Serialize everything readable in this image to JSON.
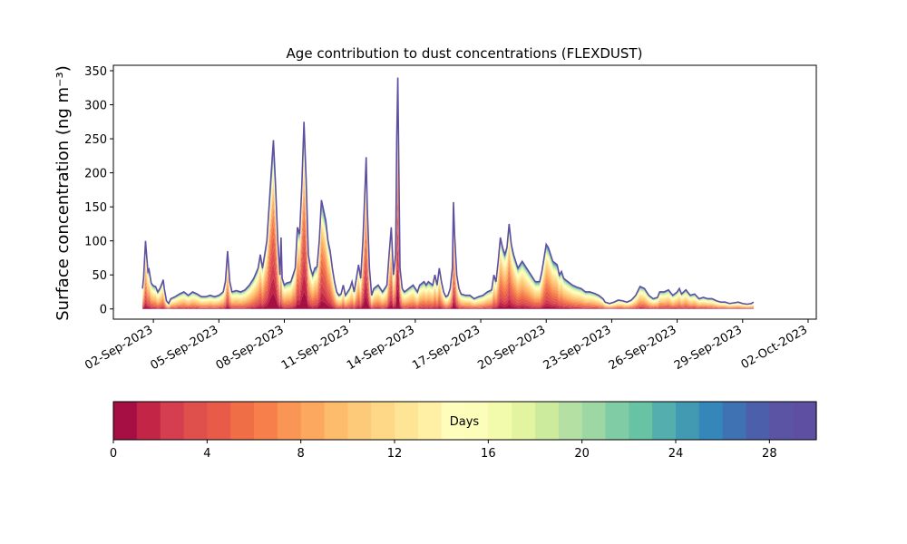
{
  "chart_data": {
    "type": "area",
    "stacked": true,
    "title": "Age contribution to dust concentrations (FLEXDUST)",
    "xlabel": "",
    "ylabel": "Surface concentration (ng m⁻³)",
    "ylim": [
      -15,
      358
    ],
    "xlim": [
      "2023-08-31 04:00",
      "2023-10-02 09:00"
    ],
    "yticks": [
      "0",
      "50",
      "100",
      "150",
      "200",
      "250",
      "300",
      "350"
    ],
    "xticks": [
      "02-Sep-2023",
      "05-Sep-2023",
      "08-Sep-2023",
      "11-Sep-2023",
      "14-Sep-2023",
      "17-Sep-2023",
      "20-Sep-2023",
      "23-Sep-2023",
      "26-Sep-2023",
      "29-Sep-2023",
      "02-Oct-2023"
    ],
    "x_start": "2023-09-01 12:00",
    "x_end": "2023-10-01 12:00",
    "total_concentration": [
      [
        0.0,
        30
      ],
      [
        0.05,
        45
      ],
      [
        0.1,
        75
      ],
      [
        0.14,
        100
      ],
      [
        0.2,
        75
      ],
      [
        0.25,
        55
      ],
      [
        0.3,
        58
      ],
      [
        0.4,
        38
      ],
      [
        0.5,
        34
      ],
      [
        0.6,
        33
      ],
      [
        0.7,
        25
      ],
      [
        0.8,
        30
      ],
      [
        0.9,
        38
      ],
      [
        0.95,
        43
      ],
      [
        1.0,
        30
      ],
      [
        1.1,
        12
      ],
      [
        1.2,
        8
      ],
      [
        1.3,
        15
      ],
      [
        1.5,
        18
      ],
      [
        1.7,
        22
      ],
      [
        1.9,
        25
      ],
      [
        2.1,
        20
      ],
      [
        2.3,
        25
      ],
      [
        2.5,
        22
      ],
      [
        2.7,
        18
      ],
      [
        2.9,
        18
      ],
      [
        3.1,
        20
      ],
      [
        3.3,
        18
      ],
      [
        3.5,
        20
      ],
      [
        3.7,
        25
      ],
      [
        3.8,
        40
      ],
      [
        3.9,
        85
      ],
      [
        4.0,
        40
      ],
      [
        4.1,
        25
      ],
      [
        4.3,
        27
      ],
      [
        4.5,
        25
      ],
      [
        4.7,
        28
      ],
      [
        4.9,
        35
      ],
      [
        5.1,
        45
      ],
      [
        5.3,
        60
      ],
      [
        5.4,
        80
      ],
      [
        5.5,
        60
      ],
      [
        5.7,
        100
      ],
      [
        5.8,
        150
      ],
      [
        5.9,
        200
      ],
      [
        6.0,
        248
      ],
      [
        6.1,
        180
      ],
      [
        6.2,
        100
      ],
      [
        6.3,
        50
      ],
      [
        6.35,
        105
      ],
      [
        6.4,
        45
      ],
      [
        6.5,
        35
      ],
      [
        6.6,
        38
      ],
      [
        6.8,
        40
      ],
      [
        7.0,
        60
      ],
      [
        7.1,
        120
      ],
      [
        7.2,
        110
      ],
      [
        7.3,
        180
      ],
      [
        7.4,
        275
      ],
      [
        7.5,
        190
      ],
      [
        7.6,
        80
      ],
      [
        7.7,
        60
      ],
      [
        7.8,
        50
      ],
      [
        7.9,
        60
      ],
      [
        8.0,
        62
      ],
      [
        8.1,
        100
      ],
      [
        8.2,
        160
      ],
      [
        8.3,
        145
      ],
      [
        8.4,
        130
      ],
      [
        8.5,
        100
      ],
      [
        8.6,
        85
      ],
      [
        8.7,
        60
      ],
      [
        8.8,
        40
      ],
      [
        8.9,
        25
      ],
      [
        9.0,
        20
      ],
      [
        9.1,
        22
      ],
      [
        9.2,
        35
      ],
      [
        9.3,
        20
      ],
      [
        9.4,
        25
      ],
      [
        9.5,
        30
      ],
      [
        9.6,
        40
      ],
      [
        9.7,
        25
      ],
      [
        9.8,
        45
      ],
      [
        9.9,
        65
      ],
      [
        10.0,
        45
      ],
      [
        10.1,
        100
      ],
      [
        10.2,
        180
      ],
      [
        10.25,
        223
      ],
      [
        10.3,
        150
      ],
      [
        10.4,
        60
      ],
      [
        10.5,
        20
      ],
      [
        10.6,
        30
      ],
      [
        10.8,
        35
      ],
      [
        11.0,
        25
      ],
      [
        11.2,
        35
      ],
      [
        11.3,
        80
      ],
      [
        11.4,
        120
      ],
      [
        11.5,
        50
      ],
      [
        11.6,
        80
      ],
      [
        11.65,
        250
      ],
      [
        11.7,
        340
      ],
      [
        11.75,
        200
      ],
      [
        11.8,
        60
      ],
      [
        11.9,
        30
      ],
      [
        12.0,
        25
      ],
      [
        12.2,
        30
      ],
      [
        12.4,
        35
      ],
      [
        12.6,
        25
      ],
      [
        12.7,
        35
      ],
      [
        12.9,
        40
      ],
      [
        13.0,
        35
      ],
      [
        13.1,
        40
      ],
      [
        13.3,
        35
      ],
      [
        13.4,
        50
      ],
      [
        13.5,
        35
      ],
      [
        13.6,
        60
      ],
      [
        13.7,
        40
      ],
      [
        13.8,
        25
      ],
      [
        13.9,
        18
      ],
      [
        14.0,
        20
      ],
      [
        14.1,
        30
      ],
      [
        14.2,
        60
      ],
      [
        14.25,
        157
      ],
      [
        14.3,
        110
      ],
      [
        14.4,
        50
      ],
      [
        14.5,
        30
      ],
      [
        14.6,
        22
      ],
      [
        14.8,
        20
      ],
      [
        15.0,
        20
      ],
      [
        15.2,
        15
      ],
      [
        15.4,
        18
      ],
      [
        15.6,
        20
      ],
      [
        15.8,
        25
      ],
      [
        16.0,
        28
      ],
      [
        16.1,
        50
      ],
      [
        16.2,
        40
      ],
      [
        16.3,
        70
      ],
      [
        16.4,
        105
      ],
      [
        16.5,
        90
      ],
      [
        16.6,
        80
      ],
      [
        16.7,
        90
      ],
      [
        16.8,
        125
      ],
      [
        16.9,
        95
      ],
      [
        17.0,
        80
      ],
      [
        17.2,
        60
      ],
      [
        17.4,
        70
      ],
      [
        17.5,
        65
      ],
      [
        17.6,
        60
      ],
      [
        17.8,
        50
      ],
      [
        18.0,
        40
      ],
      [
        18.2,
        40
      ],
      [
        18.3,
        55
      ],
      [
        18.5,
        95
      ],
      [
        18.6,
        90
      ],
      [
        18.8,
        70
      ],
      [
        19.0,
        65
      ],
      [
        19.1,
        50
      ],
      [
        19.2,
        55
      ],
      [
        19.3,
        45
      ],
      [
        19.5,
        40
      ],
      [
        19.7,
        35
      ],
      [
        19.9,
        32
      ],
      [
        20.1,
        30
      ],
      [
        20.3,
        25
      ],
      [
        20.5,
        25
      ],
      [
        20.7,
        23
      ],
      [
        20.9,
        20
      ],
      [
        21.1,
        15
      ],
      [
        21.2,
        10
      ],
      [
        21.4,
        8
      ],
      [
        21.6,
        10
      ],
      [
        21.8,
        13
      ],
      [
        22.0,
        12
      ],
      [
        22.2,
        10
      ],
      [
        22.4,
        13
      ],
      [
        22.6,
        20
      ],
      [
        22.8,
        33
      ],
      [
        23.0,
        30
      ],
      [
        23.2,
        20
      ],
      [
        23.4,
        15
      ],
      [
        23.6,
        17
      ],
      [
        23.7,
        25
      ],
      [
        23.9,
        25
      ],
      [
        24.1,
        28
      ],
      [
        24.3,
        20
      ],
      [
        24.5,
        25
      ],
      [
        24.6,
        30
      ],
      [
        24.7,
        22
      ],
      [
        24.9,
        28
      ],
      [
        25.1,
        20
      ],
      [
        25.3,
        22
      ],
      [
        25.5,
        15
      ],
      [
        25.7,
        17
      ],
      [
        25.9,
        15
      ],
      [
        26.1,
        15
      ],
      [
        26.3,
        12
      ],
      [
        26.5,
        10
      ],
      [
        26.7,
        10
      ],
      [
        26.9,
        8
      ],
      [
        27.1,
        9
      ],
      [
        27.3,
        10
      ],
      [
        27.5,
        8
      ],
      [
        27.7,
        7
      ],
      [
        27.9,
        8
      ],
      [
        28.0,
        10
      ]
    ],
    "colorbar": {
      "label": "Days",
      "range": [
        0,
        30
      ],
      "ticks": [
        "0",
        "4",
        "8",
        "12",
        "16",
        "20",
        "24",
        "28"
      ],
      "colors": [
        "#a50f44",
        "#c22545",
        "#d53e4f",
        "#df4f4b",
        "#e85b48",
        "#f06e46",
        "#f67f4b",
        "#f99555",
        "#fca95f",
        "#fdbb6c",
        "#fdca79",
        "#fed887",
        "#fee596",
        "#fff0a6",
        "#fffdbb",
        "#fbfdb9",
        "#f2faac",
        "#e3f4a0",
        "#cceb9d",
        "#b4e0a3",
        "#9cd7a4",
        "#80cca5",
        "#68c2a4",
        "#54aead",
        "#419ab1",
        "#3587ba",
        "#3f72b3",
        "#4b5fab",
        "#5b53a4",
        "#5e4fa2"
      ]
    }
  }
}
